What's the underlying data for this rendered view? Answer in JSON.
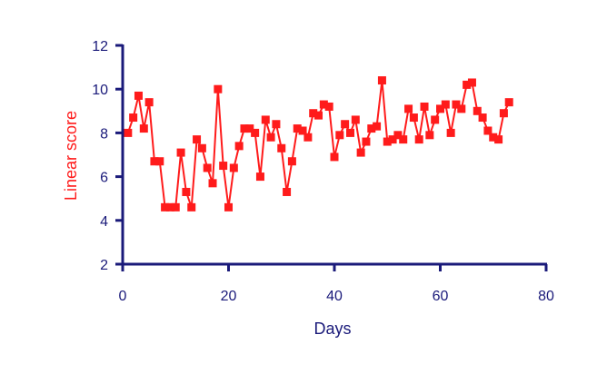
{
  "chart_data": {
    "type": "line",
    "title": "",
    "xlabel": "Days",
    "ylabel": "Linear score",
    "xlim": [
      0,
      80
    ],
    "ylim": [
      2,
      12
    ],
    "x_ticks": [
      0,
      20,
      40,
      60,
      80
    ],
    "y_ticks": [
      2,
      4,
      6,
      8,
      10,
      12
    ],
    "grid": false,
    "colors": {
      "axis": "#1a1a7a",
      "series": "#ff1b1b",
      "ylabel": "#ff1b1b"
    },
    "series": [
      {
        "marker": "square",
        "points": [
          [
            1,
            8.0
          ],
          [
            2,
            8.7
          ],
          [
            3,
            9.7
          ],
          [
            4,
            8.2
          ],
          [
            5,
            9.4
          ],
          [
            6,
            6.7
          ],
          [
            7,
            6.7
          ],
          [
            8,
            4.6
          ],
          [
            9,
            4.6
          ],
          [
            10,
            4.6
          ],
          [
            11,
            7.1
          ],
          [
            12,
            5.3
          ],
          [
            13,
            4.6
          ],
          [
            14,
            7.7
          ],
          [
            15,
            7.3
          ],
          [
            16,
            6.4
          ],
          [
            17,
            5.7
          ],
          [
            18,
            10.0
          ],
          [
            19,
            6.5
          ],
          [
            20,
            4.6
          ],
          [
            21,
            6.4
          ],
          [
            22,
            7.4
          ],
          [
            23,
            8.2
          ],
          [
            24,
            8.2
          ],
          [
            25,
            8.0
          ],
          [
            26,
            6.0
          ],
          [
            27,
            8.6
          ],
          [
            28,
            7.8
          ],
          [
            29,
            8.4
          ],
          [
            30,
            7.3
          ],
          [
            31,
            5.3
          ],
          [
            32,
            6.7
          ],
          [
            33,
            8.2
          ],
          [
            34,
            8.1
          ],
          [
            35,
            7.8
          ],
          [
            36,
            8.9
          ],
          [
            37,
            8.8
          ],
          [
            38,
            9.3
          ],
          [
            39,
            9.2
          ],
          [
            40,
            6.9
          ],
          [
            41,
            7.9
          ],
          [
            42,
            8.4
          ],
          [
            43,
            8.0
          ],
          [
            44,
            8.6
          ],
          [
            45,
            7.1
          ],
          [
            46,
            7.6
          ],
          [
            47,
            8.2
          ],
          [
            48,
            8.3
          ],
          [
            49,
            10.4
          ],
          [
            50,
            7.6
          ],
          [
            51,
            7.7
          ],
          [
            52,
            7.9
          ],
          [
            53,
            7.7
          ],
          [
            54,
            9.1
          ],
          [
            55,
            8.7
          ],
          [
            56,
            7.7
          ],
          [
            57,
            9.2
          ],
          [
            58,
            7.9
          ],
          [
            59,
            8.6
          ],
          [
            60,
            9.1
          ],
          [
            61,
            9.3
          ],
          [
            62,
            8.0
          ],
          [
            63,
            9.3
          ],
          [
            64,
            9.1
          ],
          [
            65,
            10.2
          ],
          [
            66,
            10.3
          ],
          [
            67,
            9.0
          ],
          [
            68,
            8.7
          ],
          [
            69,
            8.1
          ],
          [
            70,
            7.8
          ],
          [
            71,
            7.7
          ],
          [
            72,
            8.9
          ],
          [
            73,
            9.4
          ]
        ]
      }
    ]
  }
}
